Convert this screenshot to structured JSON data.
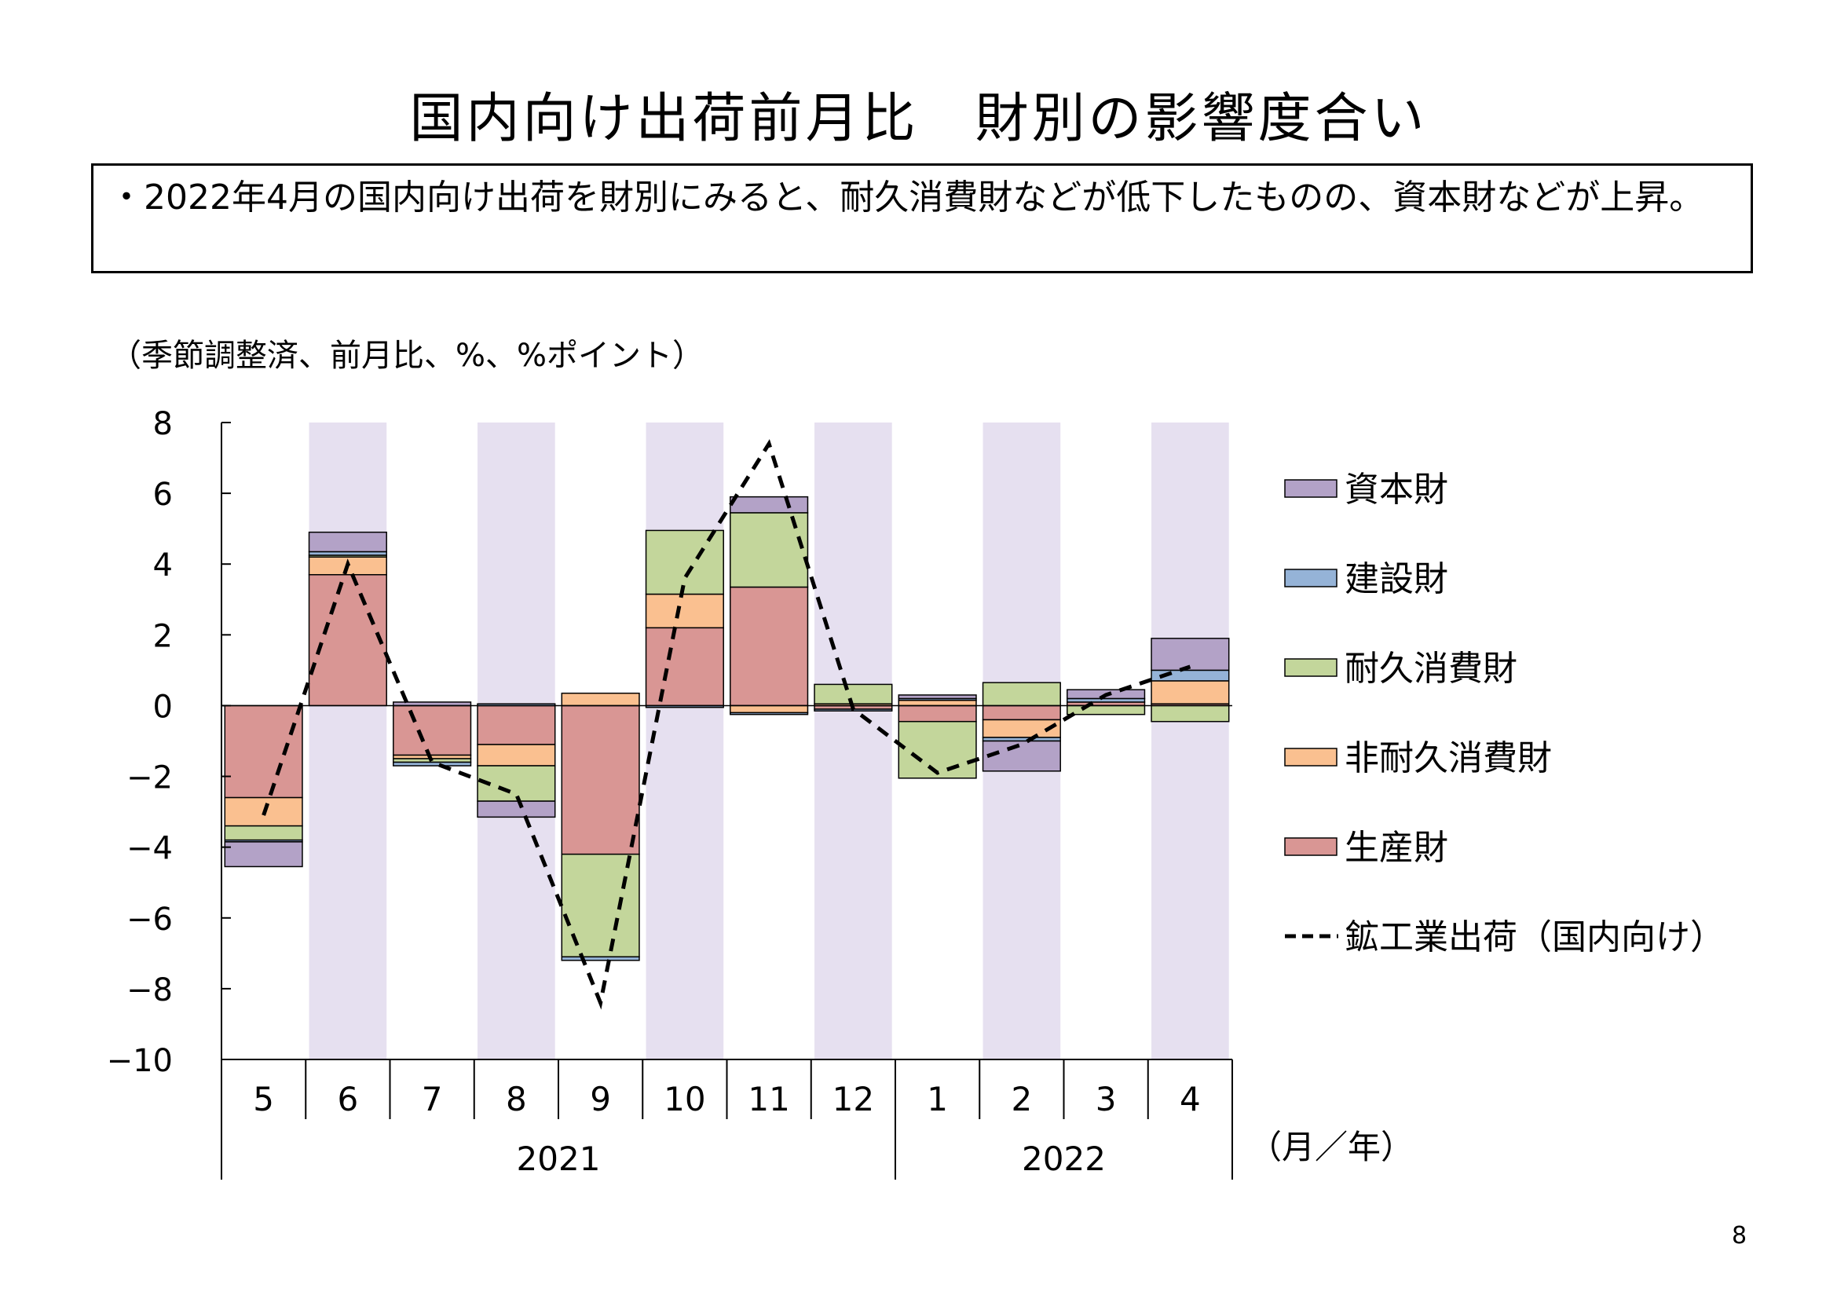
{
  "title": "国内向け出荷前月比　財別の影響度合い",
  "summary": "・2022年4月の国内向け出荷を財別にみると、耐久消費財などが低下したものの、資本財などが上昇。",
  "unit_note": "（季節調整済、前月比、%、%ポイント）",
  "page_number": "8",
  "colors": {
    "capital_goods": "#b3a2c7",
    "construction_goods": "#95b3d7",
    "durable_consumer_goods": "#c3d69b",
    "nondurable_consumer_goods": "#fac090",
    "producer_goods": "#d99694",
    "line": "#000000",
    "shade": "#e6e0f0"
  },
  "chart_data": {
    "type": "bar",
    "stacked": true,
    "categories": [
      "5",
      "6",
      "7",
      "8",
      "9",
      "10",
      "11",
      "12",
      "1",
      "2",
      "3",
      "4"
    ],
    "year_groups": [
      {
        "label": "2021",
        "span": 8
      },
      {
        "label": "2022",
        "span": 4
      }
    ],
    "x_unit_label": "（月／年）",
    "ylim": [
      -10,
      8
    ],
    "yticks": [
      "8",
      "6",
      "4",
      "2",
      "0",
      "−2",
      "−4",
      "−6",
      "−8",
      "−10"
    ],
    "shaded_categories": [
      "6",
      "8",
      "10",
      "12",
      "2",
      "4"
    ],
    "series": [
      {
        "name": "生産財",
        "key": "producer_goods",
        "values": [
          -2.6,
          3.7,
          -1.4,
          -1.1,
          -4.2,
          2.2,
          3.35,
          -0.1,
          -0.45,
          -0.4,
          0.1,
          0.05
        ]
      },
      {
        "name": "非耐久消費財",
        "key": "nondurable_consumer_goods",
        "values": [
          -0.8,
          0.5,
          -0.1,
          -0.6,
          0.35,
          0.95,
          -0.2,
          0.05,
          0.15,
          -0.5,
          0.0,
          0.65
        ]
      },
      {
        "name": "耐久消費財",
        "key": "durable_consumer_goods",
        "values": [
          -0.4,
          0.05,
          -0.1,
          -1.0,
          -2.9,
          1.8,
          2.1,
          0.55,
          -1.6,
          0.65,
          -0.25,
          -0.45
        ]
      },
      {
        "name": "建設財",
        "key": "construction_goods",
        "values": [
          -0.05,
          0.1,
          -0.1,
          0.05,
          -0.1,
          -0.05,
          -0.05,
          -0.05,
          0.05,
          -0.1,
          0.1,
          0.3
        ]
      },
      {
        "name": "資本財",
        "key": "capital_goods",
        "values": [
          -0.7,
          0.55,
          0.1,
          -0.45,
          0.0,
          0.0,
          0.45,
          0.0,
          0.1,
          -0.85,
          0.25,
          0.9
        ]
      }
    ],
    "line": {
      "name": "鉱工業出荷（国内向け）",
      "values": [
        -3.1,
        4.0,
        -1.6,
        -2.5,
        -8.4,
        3.6,
        7.4,
        -0.1,
        -1.9,
        -1.1,
        0.3,
        1.1
      ]
    },
    "legend_order": [
      "capital_goods",
      "construction_goods",
      "durable_consumer_goods",
      "nondurable_consumer_goods",
      "producer_goods",
      "line"
    ],
    "legend_position": "right"
  }
}
